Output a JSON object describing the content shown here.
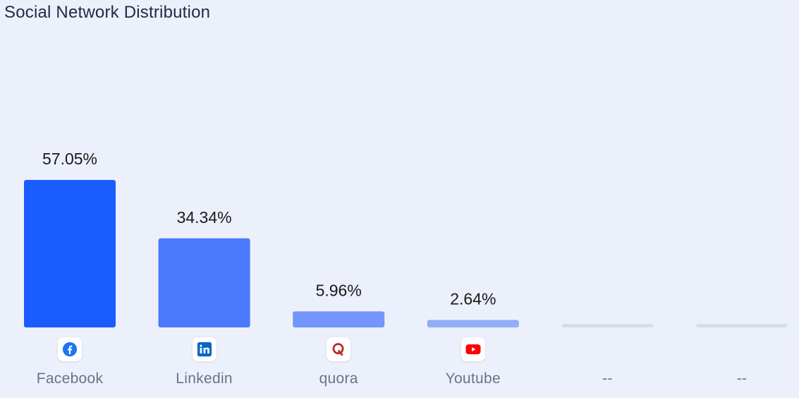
{
  "chart_data": {
    "type": "bar",
    "title": "Social Network Distribution",
    "categories": [
      "Facebook",
      "Linkedin",
      "quora",
      "Youtube",
      "--",
      "--"
    ],
    "values": [
      57.05,
      34.34,
      5.96,
      2.64,
      0,
      0
    ],
    "value_labels": [
      "57.05%",
      "34.34%",
      "5.96%",
      "2.64%",
      "",
      ""
    ],
    "icons": [
      "facebook-icon",
      "linkedin-icon",
      "quora-icon",
      "youtube-icon",
      "",
      ""
    ],
    "bar_colors": [
      "#1b5cff",
      "#4a79fc",
      "#7396fb",
      "#92adf8",
      "#d6ddea",
      "#d6ddea"
    ],
    "xlabel": "",
    "ylabel": "",
    "ylim": [
      0,
      60
    ],
    "grid": false,
    "legend": "none"
  },
  "icon_colors": {
    "facebook": "#1877f2",
    "linkedin": "#0a66c2",
    "quora": "#b92b27",
    "youtube": "#ff0000"
  }
}
